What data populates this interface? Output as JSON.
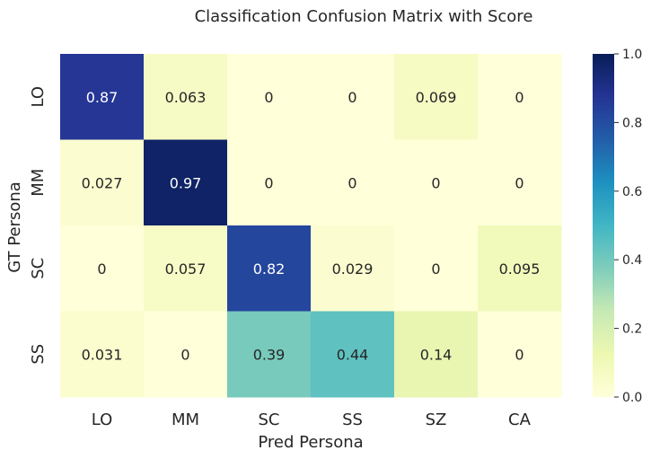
{
  "chart_data": {
    "type": "heatmap",
    "title": "Classification Confusion Matrix with Score",
    "xlabel": "Pred Persona",
    "ylabel": "GT Persona",
    "x_categories": [
      "LO",
      "MM",
      "SC",
      "SS",
      "SZ",
      "CA"
    ],
    "y_categories": [
      "LO",
      "MM",
      "SC",
      "SS"
    ],
    "values": [
      [
        0.87,
        0.063,
        0,
        0,
        0.069,
        0
      ],
      [
        0.027,
        0.97,
        0,
        0,
        0,
        0
      ],
      [
        0,
        0.057,
        0.82,
        0.029,
        0,
        0.095
      ],
      [
        0.031,
        0,
        0.39,
        0.44,
        0.14,
        0
      ]
    ],
    "cell_labels": [
      [
        "0.87",
        "0.063",
        "0",
        "0",
        "0.069",
        "0"
      ],
      [
        "0.027",
        "0.97",
        "0",
        "0",
        "0",
        "0"
      ],
      [
        "0",
        "0.057",
        "0.82",
        "0.029",
        "0",
        "0.095"
      ],
      [
        "0.031",
        "0",
        "0.39",
        "0.44",
        "0.14",
        "0"
      ]
    ],
    "colormap": "YlGnBu",
    "vmin": 0.0,
    "vmax": 1.0,
    "colorbar_ticks": [
      0.0,
      0.2,
      0.4,
      0.6,
      0.8,
      1.0
    ],
    "colorbar_tick_labels": [
      "0.0",
      "0.2",
      "0.4",
      "0.6",
      "0.8",
      "1.0"
    ],
    "colorbar_stops": [
      "#ffffd9",
      "#edf8b1",
      "#c7e9b4",
      "#7fcdbb",
      "#41b6c4",
      "#1d91c0",
      "#225ea8",
      "#253494",
      "#081d58"
    ]
  }
}
